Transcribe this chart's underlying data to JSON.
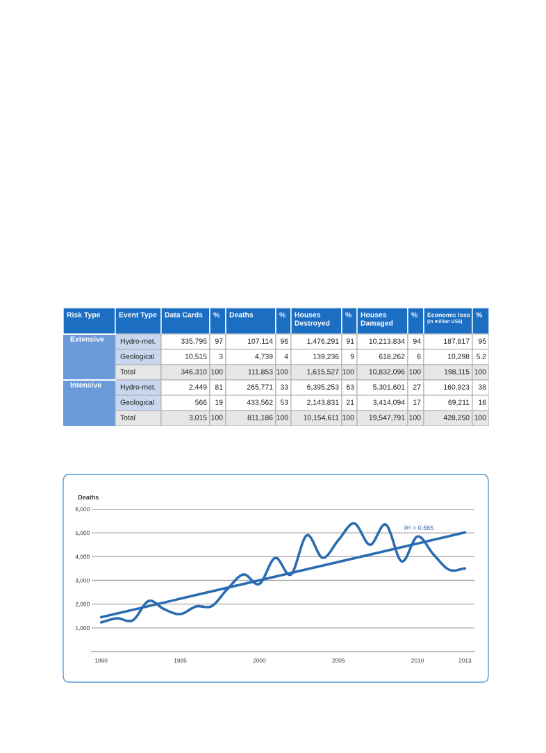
{
  "chart_data": [
    {
      "type": "other",
      "categories": [
        "Risk Type",
        "Event Type",
        "Data Cards",
        "%",
        "Deaths",
        "%",
        "Houses\nDestroyed",
        "%",
        "Houses\nDamaged",
        "%",
        "Economic loss\n(in million US$)",
        "%"
      ],
      "cell_labels": [
        [
          "Extensive",
          "Hydro-met.",
          "335,795",
          "97",
          "107,114",
          "96",
          "1,476,291",
          "91",
          "10,213,834",
          "94",
          "187,817",
          "95"
        ],
        [
          null,
          "Geological",
          "10,515",
          "3",
          "4,739",
          "4",
          "139,236",
          "9",
          "618,262",
          "6",
          "10,298",
          "5.2"
        ],
        [
          null,
          "Total",
          "346,310",
          "100",
          "111,853",
          "100",
          "1,615,527",
          "100",
          "10,832,096",
          "100",
          "198,115",
          "100"
        ],
        [
          "Intensive",
          "Hydro-met.",
          "2,449",
          "81",
          "265,771",
          "33",
          "6,395,253",
          "63",
          "5,301,601",
          "27",
          "160,923",
          "38"
        ],
        [
          null,
          "Geological",
          "566",
          "19",
          "433,562",
          "53",
          "2,143,831",
          "21",
          "3,414,094",
          "17",
          "69,211",
          "16"
        ],
        [
          null,
          "Total",
          "3,015",
          "100",
          "811,186",
          "100",
          "10,154,611",
          "100",
          "19,547,791",
          "100",
          "428,250",
          "100"
        ]
      ]
    },
    {
      "type": "line",
      "ylabel": "Deaths",
      "series": [
        {
          "color": "#2b6cb0",
          "x": [
            1990,
            1991,
            1992,
            1993,
            1994,
            1995,
            1996,
            1997,
            1998,
            1999,
            2000,
            2001,
            2002,
            2003,
            2004,
            2005,
            2006,
            2007,
            2008,
            2009,
            2010,
            2011,
            2012,
            2013
          ],
          "values": [
            1230,
            1400,
            1320,
            2130,
            1780,
            1580,
            1900,
            1920,
            2650,
            3250,
            2850,
            3950,
            3250,
            4900,
            3950,
            4700,
            5400,
            4500,
            5350,
            3800,
            4850,
            4100,
            3450,
            3500
          ]
        },
        {
          "color": "#2b6cb0",
          "x": [
            1990,
            2013
          ],
          "values": [
            1450,
            5020
          ]
        }
      ],
      "xlim": [
        1989.4,
        2013.6
      ],
      "xticks": [
        1990,
        1995,
        2000,
        2005,
        2010,
        2013
      ],
      "ylim": [
        0,
        6000
      ],
      "yticks": [
        {
          "value": 1000,
          "label": "1,000"
        },
        {
          "value": 2000,
          "label": "2,000"
        },
        {
          "value": 3000,
          "label": "3,000"
        },
        {
          "value": 4000,
          "label": "4,000"
        },
        {
          "value": 5000,
          "label": "5,000"
        },
        {
          "value": 6000,
          "label": "6,000"
        }
      ],
      "grid": "y",
      "marker": "none",
      "line_style": "solid",
      "legend": false,
      "annotations": [
        "R² = 0.665"
      ]
    }
  ]
}
